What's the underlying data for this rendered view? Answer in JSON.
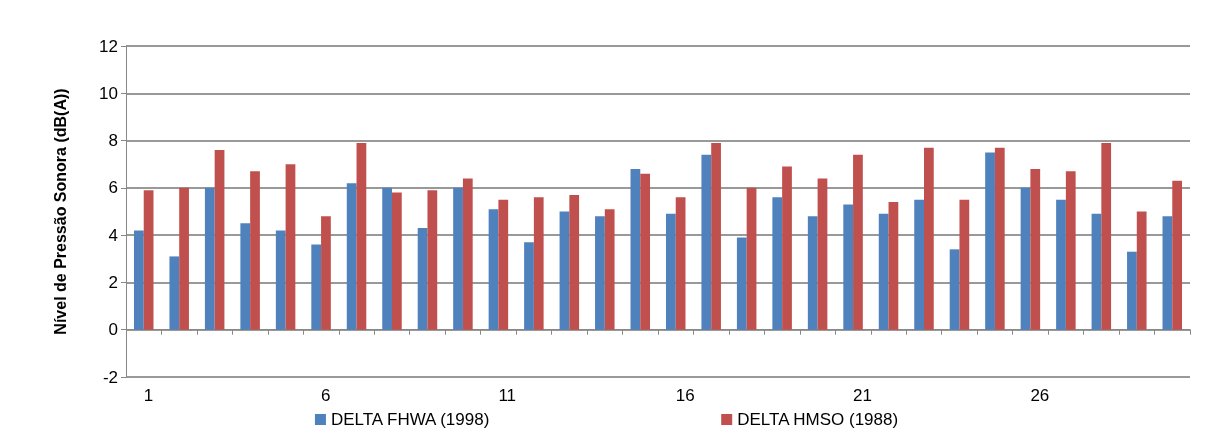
{
  "chart_data": {
    "type": "bar",
    "ylabel": "Nível de Pressão Sonora (dB(A))",
    "categories": [
      "1",
      null,
      null,
      null,
      null,
      "6",
      null,
      null,
      null,
      null,
      "11",
      null,
      null,
      null,
      null,
      "16",
      null,
      null,
      null,
      null,
      "21",
      null,
      null,
      null,
      null,
      "26",
      null,
      null,
      null,
      null
    ],
    "series": [
      {
        "name": "DELTA FHWA (1998)",
        "color": "#4f81bd",
        "values": [
          4.2,
          3.1,
          6.0,
          4.5,
          4.2,
          3.6,
          6.2,
          6.0,
          4.3,
          6.0,
          5.1,
          3.7,
          5.0,
          4.8,
          6.8,
          4.9,
          7.4,
          3.9,
          5.6,
          4.8,
          5.3,
          4.9,
          5.5,
          3.4,
          7.5,
          6.0,
          5.5,
          4.9,
          3.3,
          4.8
        ]
      },
      {
        "name": "DELTA HMSO (1988)",
        "color": "#c0504d",
        "values": [
          5.9,
          6.0,
          7.6,
          6.7,
          7.0,
          4.8,
          7.9,
          5.8,
          5.9,
          6.4,
          5.5,
          5.6,
          5.7,
          5.1,
          6.6,
          5.6,
          7.9,
          6.0,
          6.9,
          6.4,
          7.4,
          5.4,
          7.7,
          5.5,
          7.7,
          6.8,
          6.7,
          7.9,
          5.0,
          6.3
        ]
      }
    ],
    "ylim": [
      -2,
      12
    ],
    "yticks": [
      -2,
      0,
      2,
      4,
      6,
      8,
      10,
      12
    ],
    "grid": "y",
    "legend": "bottom"
  }
}
